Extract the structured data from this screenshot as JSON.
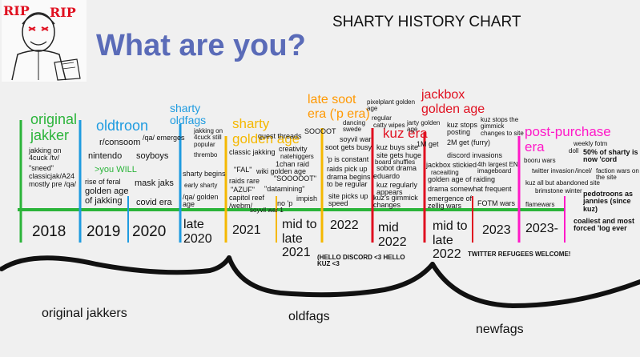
{
  "chart": {
    "title": "SHARTY HISTORY CHART",
    "subtitle": "What are you?",
    "rip_left": "RIP",
    "rip_right": "RIP"
  },
  "colors": {
    "green": "#2bb43a",
    "blue": "#1e9be0",
    "orange": "#ff9800",
    "gold": "#f5b800",
    "red": "#e01020",
    "magenta": "#ff19c8",
    "subtitle": "#5a6bb8"
  },
  "eras": {
    "original_jakker": "original jakker",
    "oldtroon": "oldtroon",
    "sharty_oldfags": "sharty oldfags",
    "sharty_golden_age": "sharty golden age",
    "late_soot": "late soot era ('p era)",
    "kuz_era": "kuz era",
    "jackbox": "jackbox golden age",
    "post_purchase": "post-purchase era"
  },
  "years": {
    "y2018": "2018",
    "y2019": "2019",
    "y2020": "2020",
    "late2020": "late 2020",
    "y2021": "2021",
    "mid_late_2021": "mid to late 2021",
    "y2022": "2022",
    "mid2022": "mid 2022",
    "mid_late_2022": "mid to late 2022",
    "y2023": "2023",
    "y2023dash": "2023-"
  },
  "events": {
    "e1": "jakking on 4cuck /tv/",
    "e2": "\"sneed\"",
    "e3": "classicjak/A24",
    "e4": "mostly pre /qa/",
    "e5": "r/consoom",
    "e6": "nintendo",
    "e7": "soyboys",
    "e8": "/qa/ emerges",
    "e9": ">you WILL",
    "e10": "rise of feral",
    "e11": "golden age of jakking",
    "e12": "mask jaks",
    "e13": "covid era",
    "e14": "jakking on 4cuck still popular",
    "e15": "thrembo",
    "e16": "sharty begins",
    "e17": "early sharty",
    "e18": "/qa/ golden age",
    "e19": "quest threads",
    "e20": "classic jakking",
    "e21": "creativity",
    "e22": "natehiggers",
    "e23": "1chan raid",
    "e24": "\"FAL\"",
    "e25": "wiki golden age",
    "e26": "\"SOOOOOT\"",
    "e27": "raids rare",
    "e28": "\"AZUF\"",
    "e29": "\"datamining\"",
    "e30": "capitol reef",
    "e31": "impish",
    "e32": "/webm/",
    "e33": "no 'p",
    "e34": "soyvil war 1",
    "e35": "SOOOOT",
    "e36": "dancing swede",
    "e37": "soyvil war",
    "e38": "soot gets busy",
    "e39": "'p is constant",
    "e40": "raids pick up",
    "e41": "drama begins to be regular",
    "e42": "site picks up speed",
    "e43": "(HELLO DISCORD <3 HELLO KUZ <3",
    "e44": "pixelplant golden age",
    "e45": "regular",
    "e46": "catty wipes",
    "e47": "jarty golden age",
    "e48": "1M get",
    "e49": "kuz buys site",
    "e50": "site gets huge",
    "e51": "board shuffles",
    "e52": "sobot drama",
    "e53": "eduardo",
    "e54": "kuz regularly appears",
    "e55": "kuz's gimmick changes",
    "e56": "kuz stops posting",
    "e57": "2M get (furry)",
    "e58": "kuz stops the gimmick changes to site",
    "e59": "discord invasions",
    "e60": "jackbox stickied",
    "e61": "raceaiting",
    "e62": "4th largest EN imageboard",
    "e63": "golden age of raiding",
    "e64": "drama somewhat frequent",
    "e65": "emergence of zellig wars",
    "e66": "FOTM wars",
    "e67": "TWITTER REFUGEES WELCOME!",
    "e68": "weekly fotm",
    "e69": "doll",
    "e70": "booru wars",
    "e71": "twitter invasion",
    "e72": "50% of sharty is now 'cord",
    "e73": "/incel/",
    "e74": "faction wars on the site",
    "e75": "kuz all but abandoned site",
    "e76": "brimstone winter",
    "e77": "flamewars",
    "e78": "pedotroons as jannies (since kuz)",
    "e79": "coaliest and most forced 'log ever"
  },
  "groups": {
    "original": "original jakkers",
    "oldfags": "oldfags",
    "newfags": "newfags"
  }
}
